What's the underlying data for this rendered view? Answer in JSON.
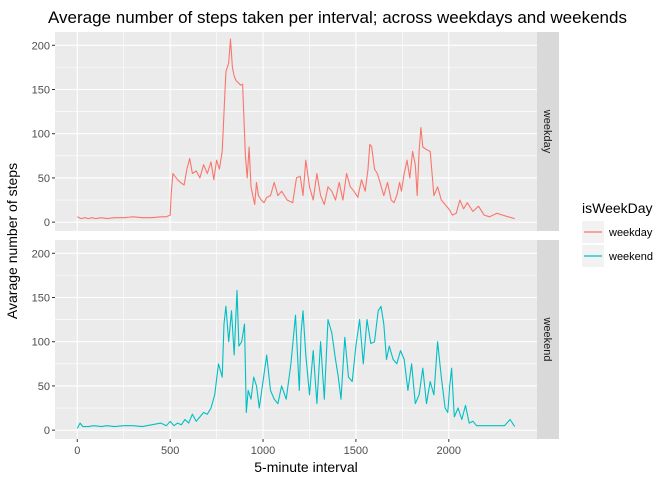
{
  "chart_data": {
    "type": "line",
    "title": "Average number of steps taken per interval; across weekdays and weekends",
    "xlabel": "5-minute interval",
    "ylabel": "Avarage number of steps",
    "xlim": [
      -120,
      2475
    ],
    "ylim": [
      -10,
      215
    ],
    "x_ticks": [
      0,
      500,
      1000,
      1500,
      2000
    ],
    "x_tick_labels": [
      "0",
      "500",
      "1000",
      "1500",
      "2000"
    ],
    "y_ticks": [
      0,
      50,
      100,
      150,
      200
    ],
    "y_tick_labels": [
      "0",
      "50",
      "100",
      "150",
      "200"
    ],
    "grid": true,
    "facet_by": "isWeekDay",
    "legend": {
      "title": "isWeekDay",
      "position": "right",
      "entries": [
        "weekday",
        "weekend"
      ]
    },
    "series": [
      {
        "name": "weekday",
        "color": "#F8766D",
        "x": [
          0,
          20,
          40,
          60,
          80,
          100,
          130,
          160,
          200,
          250,
          300,
          350,
          400,
          450,
          480,
          500,
          505,
          515,
          525,
          540,
          555,
          575,
          590,
          605,
          620,
          640,
          660,
          680,
          700,
          720,
          735,
          750,
          765,
          780,
          800,
          815,
          825,
          835,
          845,
          855,
          870,
          880,
          890,
          905,
          915,
          925,
          935,
          945,
          955,
          965,
          975,
          990,
          1005,
          1020,
          1040,
          1060,
          1080,
          1100,
          1130,
          1160,
          1180,
          1200,
          1215,
          1230,
          1250,
          1270,
          1290,
          1310,
          1330,
          1350,
          1370,
          1390,
          1410,
          1430,
          1450,
          1470,
          1490,
          1510,
          1530,
          1550,
          1565,
          1575,
          1585,
          1600,
          1615,
          1630,
          1650,
          1670,
          1690,
          1705,
          1720,
          1735,
          1745,
          1760,
          1775,
          1790,
          1805,
          1820,
          1830,
          1840,
          1850,
          1860,
          1880,
          1900,
          1920,
          1940,
          1960,
          1980,
          2000,
          2020,
          2040,
          2060,
          2080,
          2100,
          2130,
          2160,
          2190,
          2220,
          2260,
          2290,
          2320,
          2355
        ],
        "y": [
          6,
          4,
          5,
          4,
          5,
          4,
          5,
          4,
          5,
          5,
          6,
          5,
          5,
          6,
          6,
          8,
          30,
          55,
          52,
          48,
          45,
          42,
          60,
          72,
          55,
          58,
          50,
          65,
          55,
          68,
          48,
          70,
          60,
          80,
          170,
          180,
          207,
          175,
          165,
          160,
          157,
          155,
          156,
          75,
          50,
          85,
          40,
          30,
          20,
          45,
          30,
          25,
          22,
          28,
          30,
          45,
          30,
          35,
          25,
          22,
          50,
          52,
          30,
          70,
          40,
          25,
          55,
          30,
          20,
          40,
          35,
          25,
          45,
          25,
          55,
          40,
          35,
          28,
          48,
          35,
          60,
          88,
          85,
          60,
          55,
          45,
          30,
          45,
          25,
          22,
          30,
          45,
          35,
          55,
          70,
          50,
          80,
          65,
          30,
          80,
          107,
          85,
          82,
          80,
          30,
          40,
          25,
          20,
          15,
          8,
          10,
          25,
          15,
          22,
          12,
          18,
          8,
          6,
          10,
          8,
          6,
          4
        ]
      },
      {
        "name": "weekend",
        "color": "#00BFC4",
        "x": [
          0,
          15,
          30,
          60,
          90,
          130,
          160,
          200,
          250,
          300,
          350,
          400,
          450,
          480,
          500,
          520,
          540,
          560,
          580,
          600,
          620,
          640,
          660,
          680,
          700,
          720,
          740,
          760,
          780,
          790,
          800,
          815,
          830,
          845,
          860,
          870,
          885,
          900,
          910,
          920,
          935,
          950,
          965,
          980,
          1000,
          1020,
          1040,
          1060,
          1080,
          1100,
          1125,
          1150,
          1175,
          1195,
          1205,
          1215,
          1230,
          1250,
          1270,
          1290,
          1310,
          1330,
          1350,
          1370,
          1390,
          1405,
          1420,
          1440,
          1460,
          1480,
          1500,
          1520,
          1540,
          1560,
          1580,
          1600,
          1620,
          1635,
          1650,
          1665,
          1680,
          1700,
          1720,
          1740,
          1760,
          1780,
          1800,
          1820,
          1840,
          1860,
          1880,
          1900,
          1920,
          1940,
          1960,
          1980,
          1995,
          2005,
          2015,
          2030,
          2050,
          2070,
          2090,
          2110,
          2130,
          2150,
          2200,
          2250,
          2300,
          2330,
          2355
        ],
        "y": [
          2,
          8,
          4,
          4,
          5,
          4,
          5,
          4,
          5,
          5,
          4,
          6,
          8,
          5,
          10,
          5,
          8,
          6,
          12,
          8,
          18,
          10,
          15,
          20,
          18,
          25,
          40,
          75,
          60,
          120,
          140,
          100,
          135,
          85,
          158,
          95,
          100,
          120,
          20,
          45,
          35,
          60,
          50,
          25,
          55,
          85,
          45,
          35,
          30,
          50,
          35,
          75,
          130,
          45,
          110,
          135,
          85,
          40,
          90,
          30,
          100,
          35,
          125,
          110,
          80,
          60,
          35,
          105,
          60,
          55,
          95,
          125,
          75,
          125,
          98,
          100,
          135,
          140,
          120,
          80,
          95,
          80,
          75,
          90,
          80,
          45,
          75,
          30,
          40,
          70,
          30,
          55,
          40,
          100,
          60,
          25,
          20,
          50,
          70,
          15,
          25,
          12,
          28,
          8,
          10,
          5,
          5,
          5,
          5,
          12,
          4
        ]
      }
    ]
  }
}
